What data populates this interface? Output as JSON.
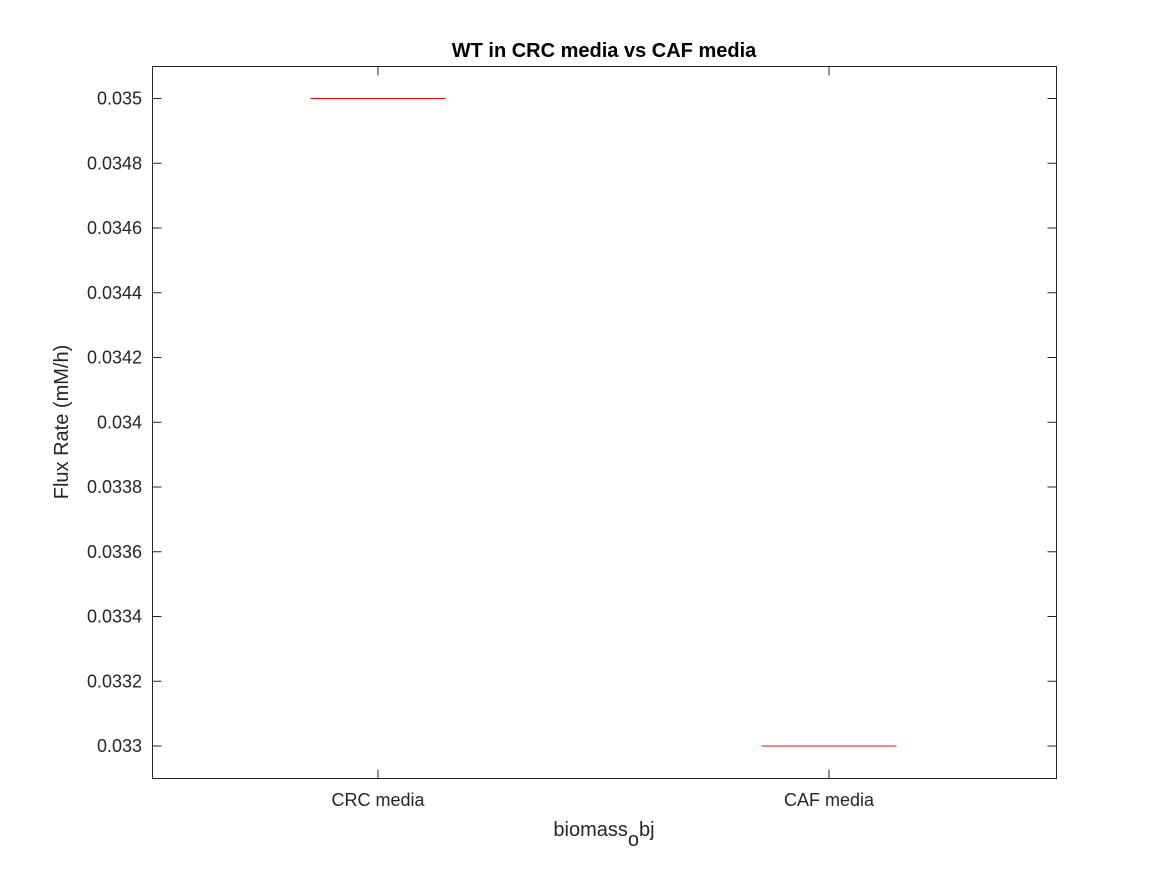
{
  "chart_data": {
    "type": "box",
    "title": "WT in CRC media vs CAF media",
    "xlabel": {
      "main": "biomass",
      "subscript": "o",
      "rest": "bj"
    },
    "ylabel": "Flux Rate (mM/h)",
    "categories": [
      "CRC media",
      "CAF media"
    ],
    "values": [
      0.035,
      0.033
    ],
    "ylim": [
      0.03299,
      0.03505
    ],
    "yticks": [
      0.033,
      0.0332,
      0.0334,
      0.0336,
      0.0338,
      0.034,
      0.0342,
      0.0344,
      0.0346,
      0.0348,
      0.035
    ],
    "ytick_labels": [
      "0.033",
      "0.0332",
      "0.0334",
      "0.0336",
      "0.0338",
      "0.034",
      "0.0342",
      "0.0344",
      "0.0346",
      "0.0348",
      "0.035"
    ],
    "grid": false,
    "colors": {
      "median_line": "#ff0000",
      "axes": "#262626",
      "background": "#ffffff"
    }
  }
}
